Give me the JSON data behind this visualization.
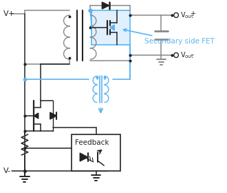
{
  "bg_color": "#ffffff",
  "line_color": "#888888",
  "blue_color": "#5ab4f0",
  "dark_color": "#222222",
  "vplus_label": "V+",
  "vminus_label": "V-",
  "feedback_label": "Feedback",
  "secondary_label": "Secondary side FET",
  "figsize": [
    3.3,
    2.8
  ],
  "dpi": 100
}
